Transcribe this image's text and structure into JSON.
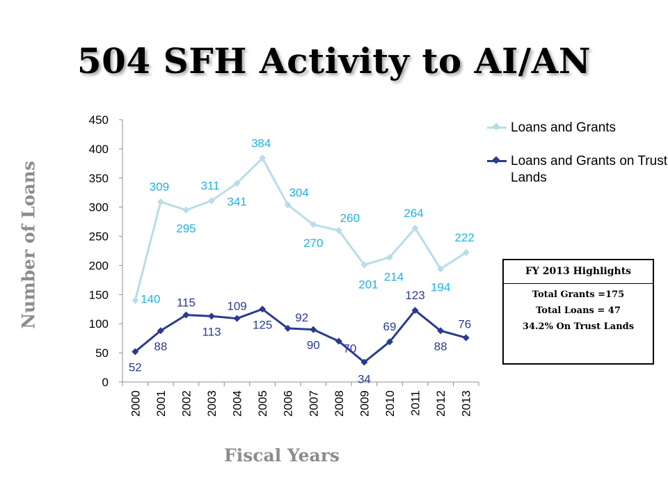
{
  "slide": {
    "title": "504 SFH Activity to AI/AN"
  },
  "highlights": {
    "header": "FY 2013 Highlights",
    "lines": [
      "Total Grants =175",
      "Total Loans = 47",
      "34.2% On Trust Lands"
    ]
  },
  "chart_data": {
    "type": "line",
    "ylabel": "Number of Loans",
    "xlabel": "Fiscal Years",
    "ylim": [
      0,
      450
    ],
    "yticks": [
      0,
      50,
      100,
      150,
      200,
      250,
      300,
      350,
      400,
      450
    ],
    "grid": false,
    "legend_position": "top-right",
    "categories": [
      "2000",
      "2001",
      "2002",
      "2003",
      "2004",
      "2005",
      "2006",
      "2007",
      "2008",
      "2009",
      "2010",
      "2011",
      "2012",
      "2013"
    ],
    "series": [
      {
        "name": "Loans and Grants",
        "color": "#b7dde8",
        "label_color": "#1fb3e0",
        "marker": "diamond",
        "values": [
          140,
          309,
          295,
          311,
          341,
          384,
          304,
          270,
          260,
          201,
          214,
          264,
          194,
          222
        ]
      },
      {
        "name": "Loans and Grants on Trust Lands",
        "color": "#2b3a8f",
        "label_color": "#2b3a8f",
        "marker": "diamond",
        "values": [
          52,
          88,
          115,
          113,
          109,
          125,
          92,
          90,
          70,
          34,
          69,
          123,
          88,
          76
        ]
      }
    ]
  }
}
